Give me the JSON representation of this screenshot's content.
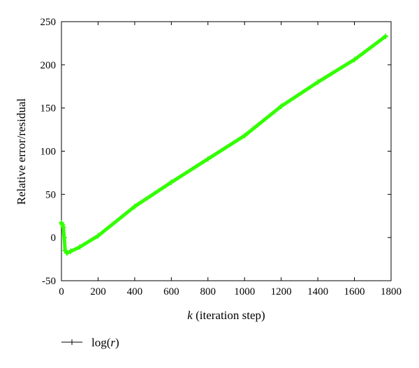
{
  "chart_data": {
    "type": "line",
    "title": "",
    "xlabel_italic": "k",
    "xlabel_rest": " (iteration step)",
    "ylabel": "Relative error/residual",
    "xlim": [
      0,
      1800
    ],
    "ylim": [
      -50,
      250
    ],
    "xticks": [
      0,
      200,
      400,
      600,
      800,
      1000,
      1200,
      1400,
      1600,
      1800
    ],
    "yticks": [
      -50,
      0,
      50,
      100,
      150,
      200,
      250
    ],
    "grid": false,
    "legend": {
      "placement": "bottom-left",
      "prefix": "log(",
      "italic": "r",
      "suffix": ")"
    },
    "series_color": "#33ff00",
    "legend_line_color": "#000000",
    "series": [
      {
        "x": [
          0,
          5,
          10,
          15,
          20,
          30,
          50,
          100,
          200,
          400,
          600,
          800,
          1000,
          1200,
          1400,
          1600,
          1770
        ],
        "values": [
          17,
          15,
          12,
          0,
          -15,
          -18,
          -16,
          -11,
          2,
          36,
          64,
          91,
          118,
          152,
          180,
          206,
          233
        ]
      }
    ]
  }
}
